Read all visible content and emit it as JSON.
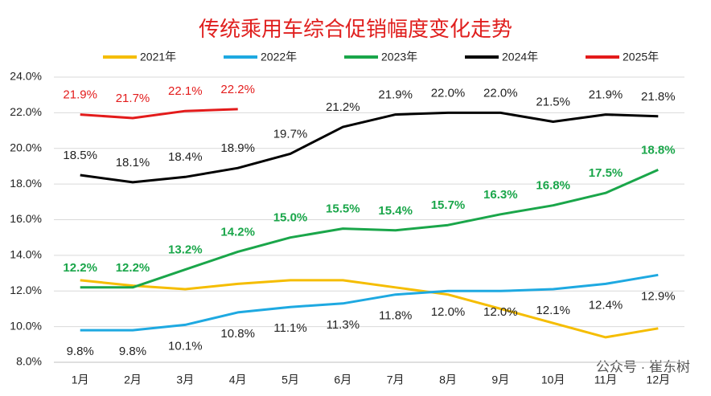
{
  "chart_data": {
    "type": "line",
    "title": "传统乘用车综合促销幅度变化走势",
    "watermark": "公众号 · 崔东树",
    "categories": [
      "1月",
      "2月",
      "3月",
      "4月",
      "5月",
      "6月",
      "7月",
      "8月",
      "9月",
      "10月",
      "11月",
      "12月"
    ],
    "series": [
      {
        "name": "2021年",
        "color": "#f5bd00",
        "values": [
          12.6,
          12.3,
          12.1,
          12.4,
          12.6,
          12.6,
          12.2,
          11.8,
          11.0,
          10.2,
          9.4,
          9.9
        ]
      },
      {
        "name": "2022年",
        "color": "#1ea9e1",
        "values": [
          9.8,
          9.8,
          10.1,
          10.8,
          11.1,
          11.3,
          11.8,
          12.0,
          12.0,
          12.1,
          12.4,
          12.9
        ],
        "value_labels": [
          "9.8%",
          "9.8%",
          "10.1%",
          "10.8%",
          "11.1%",
          "11.3%",
          "11.8%",
          "12.0%",
          "12.0%",
          "12.1%",
          "12.4%",
          "12.9%"
        ]
      },
      {
        "name": "2023年",
        "color": "#1aa64a",
        "values": [
          12.2,
          12.2,
          13.2,
          14.2,
          15.0,
          15.5,
          15.4,
          15.7,
          16.3,
          16.8,
          17.5,
          18.8
        ],
        "value_labels": [
          "12.2%",
          "12.2%",
          "13.2%",
          "14.2%",
          "15.0%",
          "15.5%",
          "15.4%",
          "15.7%",
          "16.3%",
          "16.8%",
          "17.5%",
          "18.8%"
        ]
      },
      {
        "name": "2024年",
        "color": "#000000",
        "values": [
          18.5,
          18.1,
          18.4,
          18.9,
          19.7,
          21.2,
          21.9,
          22.0,
          22.0,
          21.5,
          21.9,
          21.8
        ],
        "value_labels": [
          "18.5%",
          "18.1%",
          "18.4%",
          "18.9%",
          "19.7%",
          "21.2%",
          "21.9%",
          "22.0%",
          "22.0%",
          "21.5%",
          "21.9%",
          "21.8%"
        ]
      },
      {
        "name": "2025年",
        "color": "#e31b1b",
        "values": [
          21.9,
          21.7,
          22.1,
          22.2,
          null,
          null,
          null,
          null,
          null,
          null,
          null,
          null
        ],
        "value_labels": [
          "21.9%",
          "21.7%",
          "22.1%",
          "22.2%",
          null,
          null,
          null,
          null,
          null,
          null,
          null,
          null
        ]
      }
    ],
    "ylim": [
      8,
      24
    ],
    "yticks": [
      {
        "value": 8,
        "label": "8.0%"
      },
      {
        "value": 10,
        "label": "10.0%"
      },
      {
        "value": 12,
        "label": "12.0%"
      },
      {
        "value": 14,
        "label": "14.0%"
      },
      {
        "value": 16,
        "label": "16.0%"
      },
      {
        "value": 18,
        "label": "18.0%"
      },
      {
        "value": 20,
        "label": "20.0%"
      },
      {
        "value": 22,
        "label": "22.0%"
      },
      {
        "value": 24,
        "label": "24.0%"
      }
    ],
    "grid": true
  }
}
